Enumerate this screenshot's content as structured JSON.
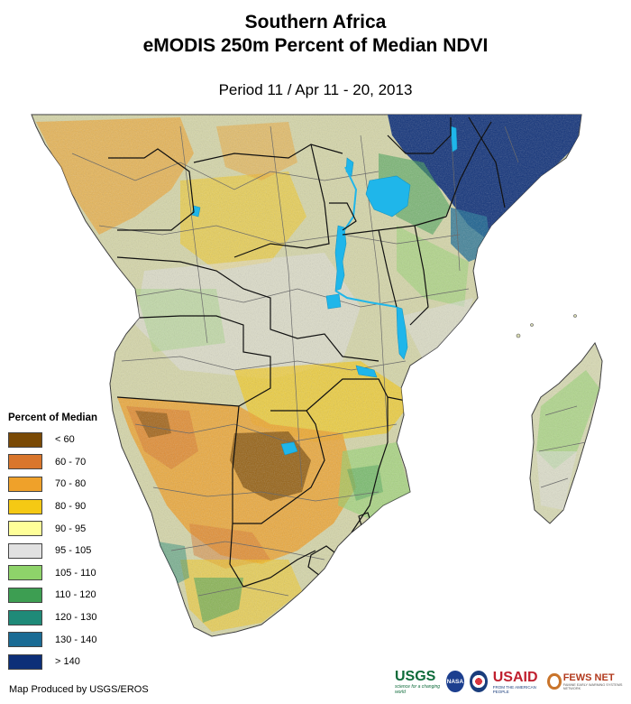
{
  "header": {
    "title_line1": "Southern Africa",
    "title_line2": "eMODIS 250m Percent of Median NDVI",
    "period": "Period 11 / Apr 11 - 20, 2013"
  },
  "legend": {
    "title": "Percent of Median",
    "items": [
      {
        "label": "< 60",
        "color": "#7a4a06"
      },
      {
        "label": "60 - 70",
        "color": "#d9762c"
      },
      {
        "label": "70 - 80",
        "color": "#efa12a"
      },
      {
        "label": "80 - 90",
        "color": "#f5c914"
      },
      {
        "label": "90 - 95",
        "color": "#ffff99"
      },
      {
        "label": "95 - 105",
        "color": "#e1e1e1"
      },
      {
        "label": "105 - 110",
        "color": "#8ed36a"
      },
      {
        "label": "110 - 120",
        "color": "#3d9e52"
      },
      {
        "label": "120 - 130",
        "color": "#1f8a78"
      },
      {
        "label": "130 - 140",
        "color": "#1a6b94"
      },
      {
        "label": "> 140",
        "color": "#0d2f78"
      }
    ]
  },
  "credit": "Map Produced by USGS/EROS",
  "logos": {
    "usgs": "USGS",
    "usgs_tag": "science for a changing world",
    "nasa": "NASA",
    "usaid": "USAID",
    "usaid_tag": "FROM THE AMERICAN PEOPLE",
    "fews": "FEWS NET",
    "fews_tag": "FAMINE EARLY WARNING SYSTEMS NETWORK"
  },
  "colors": {
    "water": "#1fb6ea",
    "border": "#111111",
    "admin": "#6b6b6b"
  }
}
